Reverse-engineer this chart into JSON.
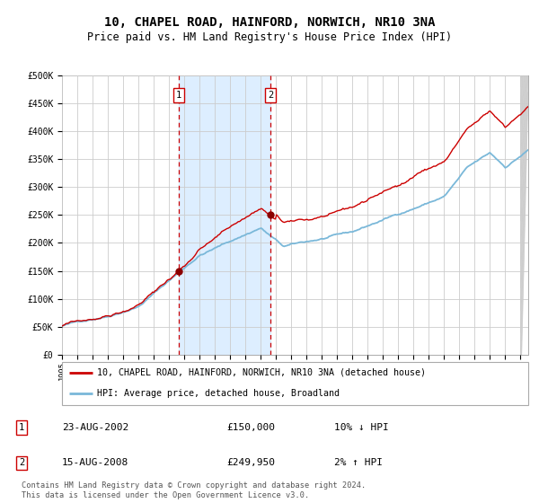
{
  "title": "10, CHAPEL ROAD, HAINFORD, NORWICH, NR10 3NA",
  "subtitle": "Price paid vs. HM Land Registry's House Price Index (HPI)",
  "ylabel_ticks": [
    "£0",
    "£50K",
    "£100K",
    "£150K",
    "£200K",
    "£250K",
    "£300K",
    "£350K",
    "£400K",
    "£450K",
    "£500K"
  ],
  "ytick_values": [
    0,
    50000,
    100000,
    150000,
    200000,
    250000,
    300000,
    350000,
    400000,
    450000,
    500000
  ],
  "xlim_start": 1995.0,
  "xlim_end": 2025.5,
  "ylim": [
    0,
    500000
  ],
  "sale1_x": 2002.644,
  "sale1_y": 150000,
  "sale2_x": 2008.627,
  "sale2_y": 249950,
  "shade_start": 2002.644,
  "shade_end": 2008.627,
  "hpi_line_color": "#7ab8d9",
  "price_line_color": "#cc0000",
  "sale_marker_color": "#8b0000",
  "shade_color": "#ddeeff",
  "dashed_color": "#cc0000",
  "legend_box1": "10, CHAPEL ROAD, HAINFORD, NORWICH, NR10 3NA (detached house)",
  "legend_box2": "HPI: Average price, detached house, Broadland",
  "table_row1": [
    "1",
    "23-AUG-2002",
    "£150,000",
    "10% ↓ HPI"
  ],
  "table_row2": [
    "2",
    "15-AUG-2008",
    "£249,950",
    "2% ↑ HPI"
  ],
  "footnote": "Contains HM Land Registry data © Crown copyright and database right 2024.\nThis data is licensed under the Open Government Licence v3.0.",
  "bg_color": "#ffffff",
  "grid_color": "#cccccc",
  "title_fontsize": 10,
  "subtitle_fontsize": 8.5,
  "tick_fontsize": 7
}
